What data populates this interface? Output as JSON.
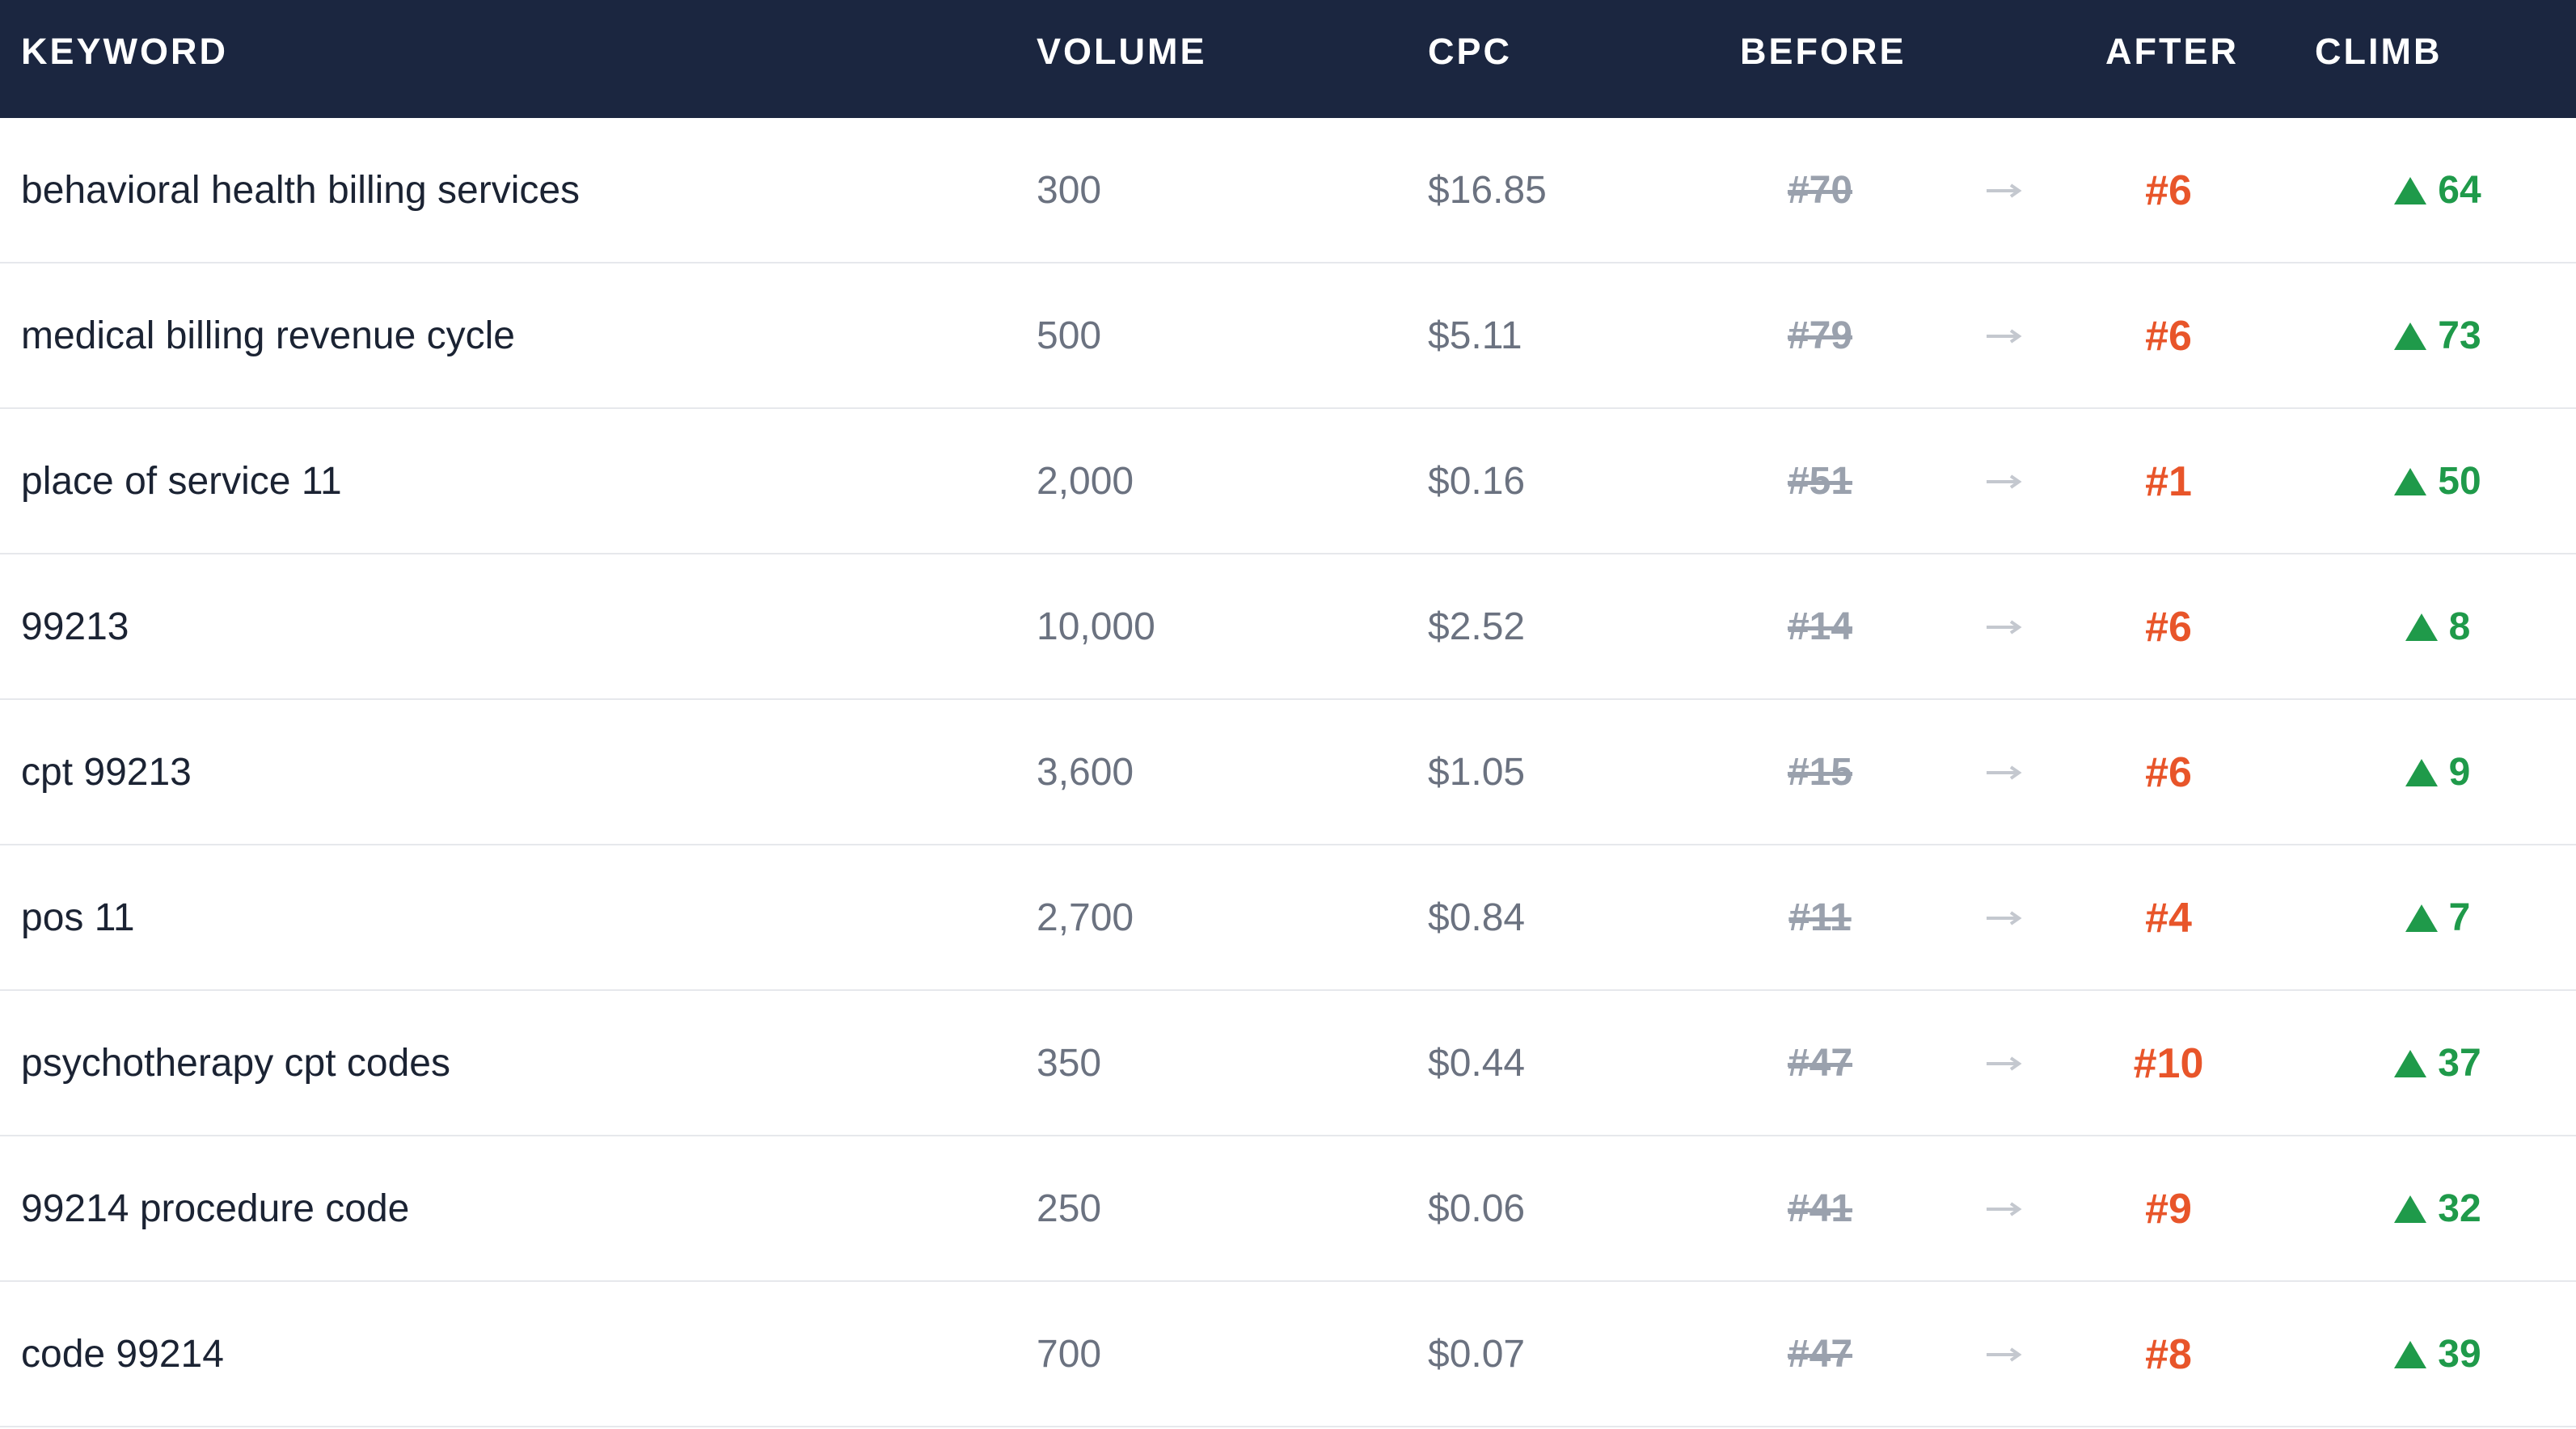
{
  "header": {
    "keyword": "KEYWORD",
    "volume": "VOLUME",
    "cpc": "CPC",
    "before": "BEFORE",
    "after": "AFTER",
    "climb": "CLIMB"
  },
  "table": {
    "rows": [
      [
        "behavioral health billing services",
        "300",
        "$16.85",
        "#70",
        "#6",
        "64"
      ],
      [
        "medical billing revenue cycle",
        "500",
        "$5.11",
        "#79",
        "#6",
        "73"
      ],
      [
        "place of service 11",
        "2,000",
        "$0.16",
        "#51",
        "#1",
        "50"
      ],
      [
        "99213",
        "10,000",
        "$2.52",
        "#14",
        "#6",
        "8"
      ],
      [
        "cpt 99213",
        "3,600",
        "$1.05",
        "#15",
        "#6",
        "9"
      ],
      [
        "pos 11",
        "2,700",
        "$0.84",
        "#11",
        "#4",
        "7"
      ],
      [
        "psychotherapy cpt codes",
        "350",
        "$0.44",
        "#47",
        "#10",
        "37"
      ],
      [
        "99214 procedure code",
        "250",
        "$0.06",
        "#41",
        "#9",
        "32"
      ],
      [
        "code 99214",
        "700",
        "$0.07",
        "#47",
        "#8",
        "39"
      ]
    ]
  }
}
